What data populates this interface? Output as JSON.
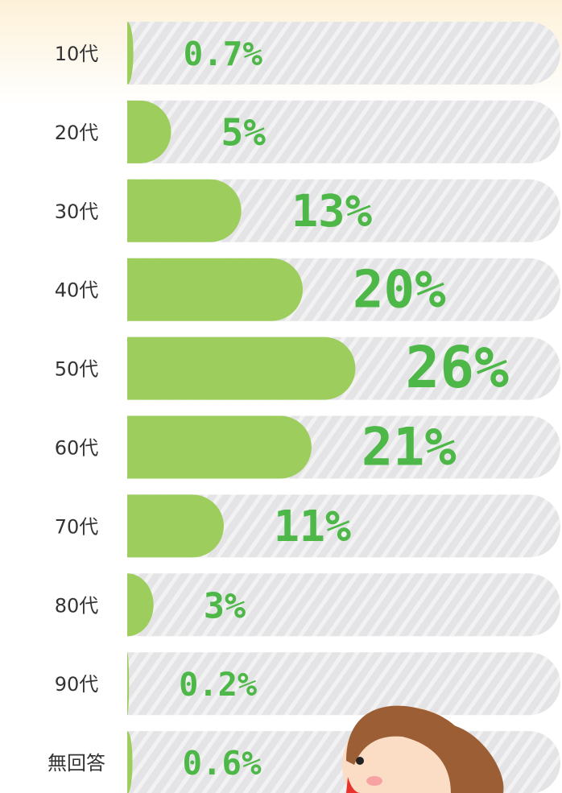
{
  "chart_data": {
    "type": "bar",
    "categories": [
      "10代",
      "20代",
      "30代",
      "40代",
      "50代",
      "60代",
      "70代",
      "80代",
      "90代",
      "無回答"
    ],
    "values": [
      0.7,
      5,
      13,
      20,
      26,
      21,
      11,
      3,
      0.2,
      0.6
    ],
    "value_labels": [
      "0.7%",
      "5%",
      "13%",
      "20%",
      "26%",
      "21%",
      "11%",
      "3%",
      "0.2%",
      "0.6%"
    ],
    "color": "#9dcd5c",
    "label_color": "#4db848"
  }
}
